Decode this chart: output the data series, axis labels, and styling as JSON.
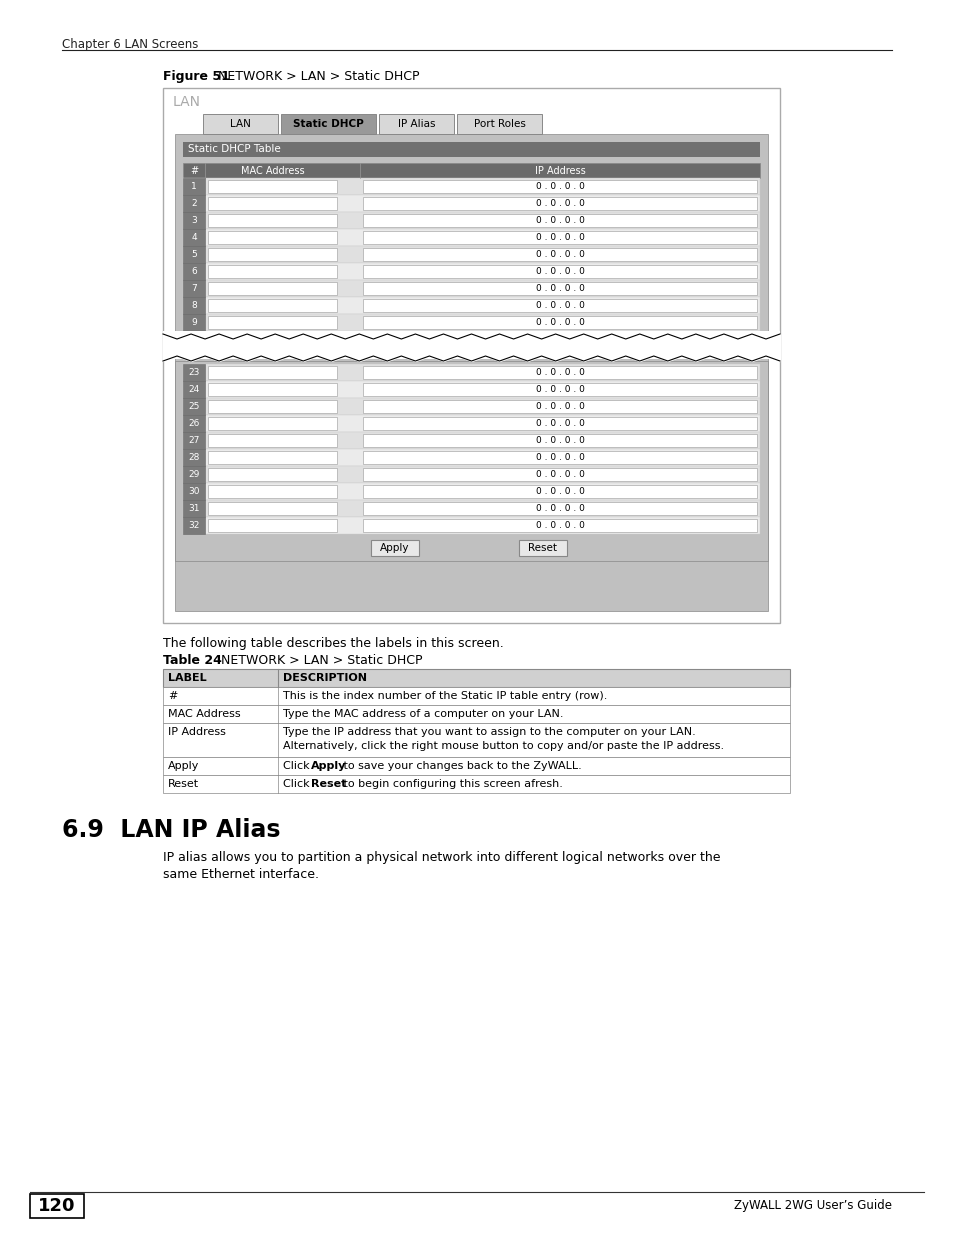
{
  "page_header": "Chapter 6 LAN Screens",
  "figure_label": "Figure 51",
  "figure_title": "  NETWORK > LAN > Static DHCP",
  "lan_label": "LAN",
  "tabs": [
    "LAN",
    "Static DHCP",
    "IP Alias",
    "Port Roles"
  ],
  "active_tab": "Static DHCP",
  "section_header": "Static DHCP Table",
  "col_headers": [
    "#",
    "MAC Address",
    "IP Address"
  ],
  "rows_top": [
    "1",
    "2",
    "3",
    "4",
    "5",
    "6",
    "7",
    "8",
    "9"
  ],
  "rows_bottom": [
    "23",
    "24",
    "25",
    "26",
    "27",
    "28",
    "29",
    "30",
    "31",
    "32"
  ],
  "ip_value": "0 . 0 . 0 . 0",
  "btn_apply": "Apply",
  "btn_reset": "Reset",
  "table_caption": "The following table describes the labels in this screen.",
  "table24_label": "Table 24",
  "table24_title": "  NETWORK > LAN > Static DHCP",
  "table_headers": [
    "LABEL",
    "DESCRIPTION"
  ],
  "table_rows": [
    [
      "#",
      "This is the index number of the Static IP table entry (row)."
    ],
    [
      "MAC Address",
      "Type the MAC address of a computer on your LAN."
    ],
    [
      "IP Address",
      "Type the IP address that you want to assign to the computer on your LAN.\nAlternatively, click the right mouse button to copy and/or paste the IP address."
    ],
    [
      "Apply",
      "Click Apply to save your changes back to the ZyWALL."
    ],
    [
      "Reset",
      "Click Reset to begin configuring this screen afresh."
    ]
  ],
  "section69_title": "6.9  LAN IP Alias",
  "section69_text": "IP alias allows you to partition a physical network into different logical networks over the\nsame Ethernet interface.",
  "page_number": "120",
  "footer_right": "ZyWALL 2WG User’s Guide",
  "bg_white": "#ffffff",
  "border_color": "#888888",
  "text_dark": "#000000",
  "text_white": "#ffffff",
  "header_bg": "#6e6e6e",
  "tab_active_bg": "#999999",
  "tab_inactive_bg": "#d8d8d8",
  "row_num_bg": "#7a7a7a",
  "input_bg": "#ffffff",
  "screen_bg": "#c0c0c0",
  "section_header_bg": "#707070",
  "col_header_bg": "#6a6a6a"
}
